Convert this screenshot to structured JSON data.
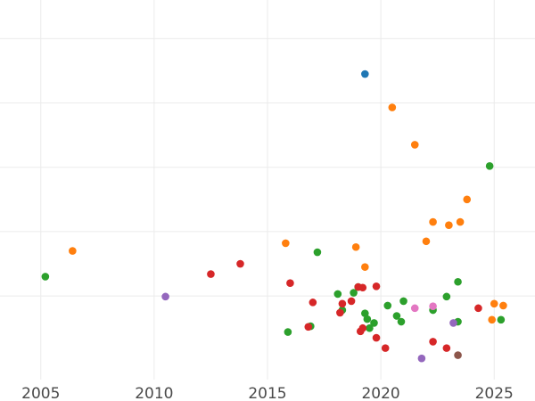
{
  "chart_data": {
    "type": "scatter",
    "title": "",
    "xlabel": "",
    "ylabel": "",
    "xlim": [
      2003.2,
      2026.8
    ],
    "ylim": [
      -0.3,
      5.6
    ],
    "grid": true,
    "legend": "none",
    "x_ticks": [
      2005,
      2010,
      2015,
      2020,
      2025
    ],
    "x_tick_labels": [
      "2005",
      "2010",
      "2015",
      "2020",
      "2025"
    ],
    "y_ticks": [
      1,
      2,
      3,
      4,
      5
    ],
    "colors": {
      "blue": "#1f77b4",
      "orange": "#ff7f0e",
      "green": "#2ca02c",
      "red": "#d62728",
      "purple": "#9467bd",
      "brown": "#8c564b",
      "pink": "#e377c2"
    },
    "series": [
      {
        "color": "blue",
        "points": [
          [
            2019.3,
            4.45
          ]
        ]
      },
      {
        "color": "orange",
        "points": [
          [
            2006.4,
            1.7
          ],
          [
            2015.8,
            1.82
          ],
          [
            2018.9,
            1.76
          ],
          [
            2019.3,
            1.45
          ],
          [
            2020.5,
            3.93
          ],
          [
            2021.5,
            3.35
          ],
          [
            2022.0,
            1.85
          ],
          [
            2022.3,
            2.15
          ],
          [
            2023.0,
            2.1
          ],
          [
            2023.5,
            2.15
          ],
          [
            2023.8,
            2.5
          ],
          [
            2025.0,
            0.88
          ],
          [
            2025.4,
            0.85
          ],
          [
            2024.9,
            0.63
          ]
        ]
      },
      {
        "color": "green",
        "points": [
          [
            2005.2,
            1.3
          ],
          [
            2015.9,
            0.44
          ],
          [
            2016.9,
            0.53
          ],
          [
            2017.2,
            1.68
          ],
          [
            2018.1,
            1.03
          ],
          [
            2018.3,
            0.78
          ],
          [
            2018.8,
            1.05
          ],
          [
            2019.0,
            1.14
          ],
          [
            2019.3,
            0.73
          ],
          [
            2019.4,
            0.64
          ],
          [
            2019.5,
            0.5
          ],
          [
            2019.7,
            0.58
          ],
          [
            2020.3,
            0.85
          ],
          [
            2020.7,
            0.69
          ],
          [
            2020.9,
            0.6
          ],
          [
            2021.0,
            0.92
          ],
          [
            2022.3,
            0.78
          ],
          [
            2022.9,
            0.99
          ],
          [
            2023.4,
            0.6
          ],
          [
            2023.4,
            1.22
          ],
          [
            2024.8,
            3.02
          ],
          [
            2025.3,
            0.63
          ]
        ]
      },
      {
        "color": "red",
        "points": [
          [
            2012.5,
            1.34
          ],
          [
            2013.8,
            1.5
          ],
          [
            2016.0,
            1.2
          ],
          [
            2016.8,
            0.52
          ],
          [
            2017.0,
            0.9
          ],
          [
            2018.2,
            0.74
          ],
          [
            2018.3,
            0.88
          ],
          [
            2018.7,
            0.92
          ],
          [
            2019.0,
            1.14
          ],
          [
            2019.1,
            0.45
          ],
          [
            2019.2,
            0.5
          ],
          [
            2019.2,
            1.13
          ],
          [
            2019.8,
            1.15
          ],
          [
            2019.8,
            0.35
          ],
          [
            2020.2,
            0.19
          ],
          [
            2022.3,
            0.29
          ],
          [
            2022.9,
            0.19
          ],
          [
            2024.3,
            0.81
          ]
        ]
      },
      {
        "color": "purple",
        "points": [
          [
            2010.5,
            0.99
          ],
          [
            2021.8,
            0.03
          ],
          [
            2023.2,
            0.58
          ]
        ]
      },
      {
        "color": "brown",
        "points": [
          [
            2023.4,
            0.08
          ]
        ]
      },
      {
        "color": "pink",
        "points": [
          [
            2021.5,
            0.81
          ],
          [
            2022.3,
            0.84
          ]
        ]
      }
    ]
  }
}
